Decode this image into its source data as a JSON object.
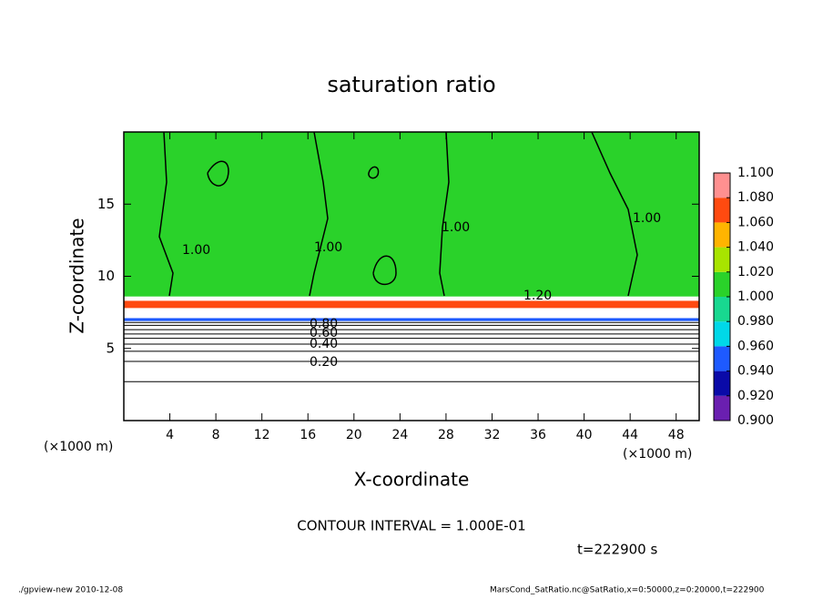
{
  "chart_data": {
    "type": "contour",
    "title": "saturation ratio",
    "x_label": "X-coordinate",
    "y_label": "Z-coordinate",
    "x_unit_left": "(×1000 m)",
    "x_unit_right": "(×1000 m)",
    "xlim": [
      0,
      50
    ],
    "xticks": [
      4,
      8,
      12,
      16,
      20,
      24,
      28,
      32,
      36,
      40,
      44,
      48
    ],
    "ylim": [
      0,
      20
    ],
    "yticks": [
      5,
      10,
      15
    ],
    "colorbar_ticks": [
      {
        "value": 0.9,
        "label": "0.900"
      },
      {
        "value": 0.92,
        "label": "0.920"
      },
      {
        "value": 0.94,
        "label": "0.940"
      },
      {
        "value": 0.96,
        "label": "0.960"
      },
      {
        "value": 0.98,
        "label": "0.980"
      },
      {
        "value": 1.0,
        "label": "1.000"
      },
      {
        "value": 1.02,
        "label": "1.020"
      },
      {
        "value": 1.04,
        "label": "1.040"
      },
      {
        "value": 1.06,
        "label": "1.060"
      },
      {
        "value": 1.08,
        "label": "1.080"
      },
      {
        "value": 1.1,
        "label": "1.100"
      }
    ],
    "colorbar_colors": [
      "#6a1fb0",
      "#0a0aa8",
      "#1e5aff",
      "#00d8e8",
      "#18d890",
      "#2ad22a",
      "#a8e400",
      "#ffb400",
      "#ff4a10",
      "#ff9090"
    ],
    "regions": [
      {
        "value": 1.0,
        "zmin": 8.6,
        "zmax": 20
      },
      {
        "value": 1.06,
        "zmin": 7.8,
        "zmax": 8.3
      },
      {
        "value": 0.94,
        "zmin": 6.9,
        "zmax": 7.1
      }
    ],
    "contour_lines": [
      {
        "level": 0.1,
        "z": 2.7
      },
      {
        "level": 0.2,
        "z": 4.1
      },
      {
        "level": 0.3,
        "z": 4.8
      },
      {
        "level": 0.4,
        "z": 5.3
      },
      {
        "level": 0.5,
        "z": 5.7
      },
      {
        "level": 0.6,
        "z": 6.0
      },
      {
        "level": 0.7,
        "z": 6.3
      },
      {
        "level": 0.8,
        "z": 6.6
      },
      {
        "level": 0.9,
        "z": 6.8
      }
    ],
    "contour_labels": [
      "0.20",
      "0.40",
      "0.60",
      "0.80",
      "1.00",
      "1.00",
      "1.00",
      "1.00",
      "1.20"
    ],
    "contour_interval": "CONTOUR INTERVAL = 1.000E-01",
    "time": "t=222900 s",
    "footer_left": "./gpview-new  2010-12-08",
    "footer_right": "MarsCond_SatRatio.nc@SatRatio,x=0:50000,z=0:20000,t=222900"
  }
}
